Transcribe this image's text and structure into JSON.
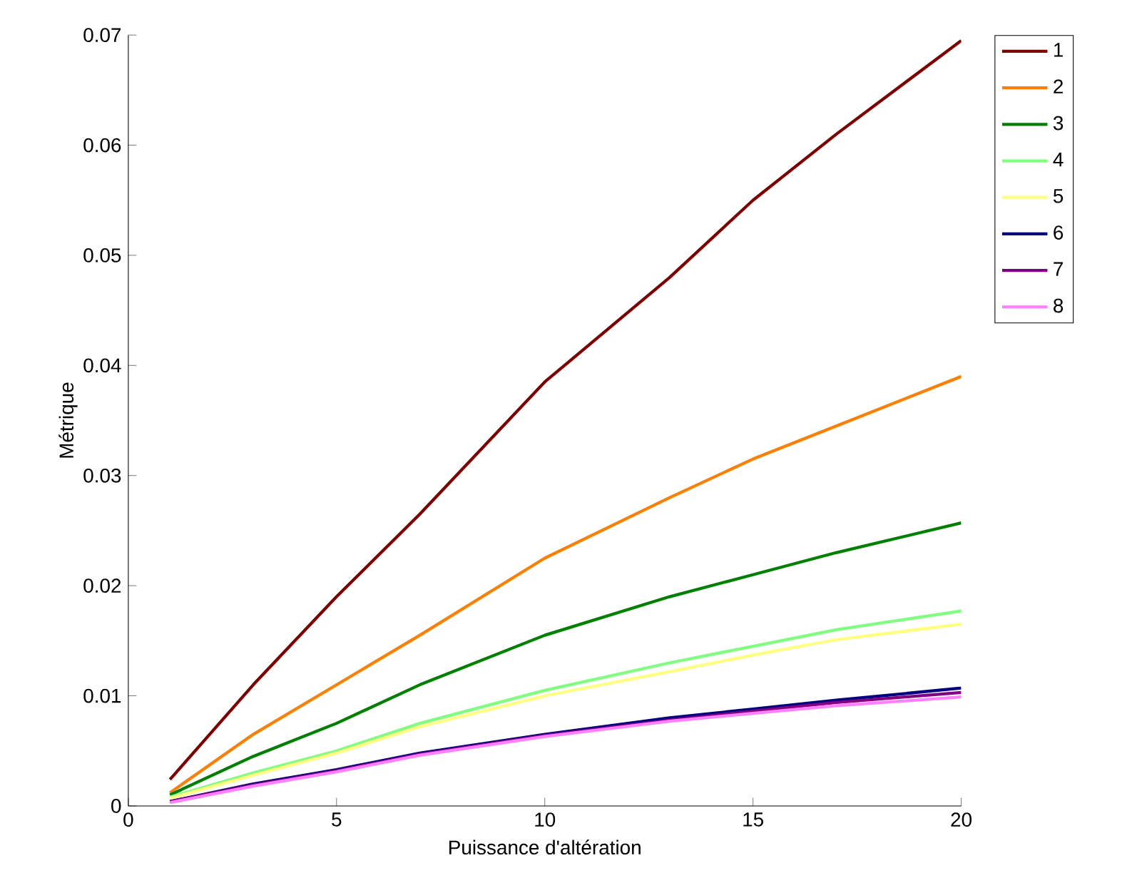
{
  "chart_data": {
    "type": "line",
    "xlabel": "Puissance d'altération",
    "ylabel": "Métrique",
    "x": [
      1,
      3,
      5,
      7,
      10,
      13,
      15,
      17,
      20
    ],
    "series": [
      {
        "name": "1",
        "color": "#800000",
        "values": [
          0.0024,
          0.011,
          0.019,
          0.0265,
          0.0385,
          0.048,
          0.055,
          0.061,
          0.0695
        ]
      },
      {
        "name": "2",
        "color": "#ff8000",
        "values": [
          0.0012,
          0.0065,
          0.011,
          0.0155,
          0.0225,
          0.028,
          0.0315,
          0.0345,
          0.039
        ]
      },
      {
        "name": "3",
        "color": "#008000",
        "values": [
          0.001,
          0.0045,
          0.0075,
          0.011,
          0.0155,
          0.019,
          0.021,
          0.023,
          0.0257
        ]
      },
      {
        "name": "4",
        "color": "#80ff80",
        "values": [
          0.0008,
          0.003,
          0.005,
          0.0075,
          0.0105,
          0.013,
          0.0145,
          0.016,
          0.0177
        ]
      },
      {
        "name": "5",
        "color": "#ffff80",
        "values": [
          0.0007,
          0.0028,
          0.0048,
          0.0072,
          0.01,
          0.0122,
          0.0137,
          0.0151,
          0.0165
        ]
      },
      {
        "name": "6",
        "color": "#000080",
        "values": [
          0.0004,
          0.002,
          0.0033,
          0.0048,
          0.0065,
          0.008,
          0.0088,
          0.0096,
          0.0107
        ]
      },
      {
        "name": "7",
        "color": "#800080",
        "values": [
          0.0004,
          0.0019,
          0.0032,
          0.0047,
          0.0064,
          0.0078,
          0.0086,
          0.0094,
          0.0103
        ]
      },
      {
        "name": "8",
        "color": "#ff80ff",
        "values": [
          0.0003,
          0.0018,
          0.0031,
          0.0046,
          0.0063,
          0.0077,
          0.0084,
          0.0091,
          0.0099
        ]
      }
    ],
    "xlim": [
      0,
      20
    ],
    "ylim": [
      0,
      0.07
    ],
    "xticks": [
      0,
      5,
      10,
      15,
      20
    ],
    "yticks": [
      0,
      0.01,
      0.02,
      0.03,
      0.04,
      0.05,
      0.06,
      0.07
    ],
    "legend": "top right",
    "grid": false,
    "marker": "none",
    "line_style": "solid"
  }
}
